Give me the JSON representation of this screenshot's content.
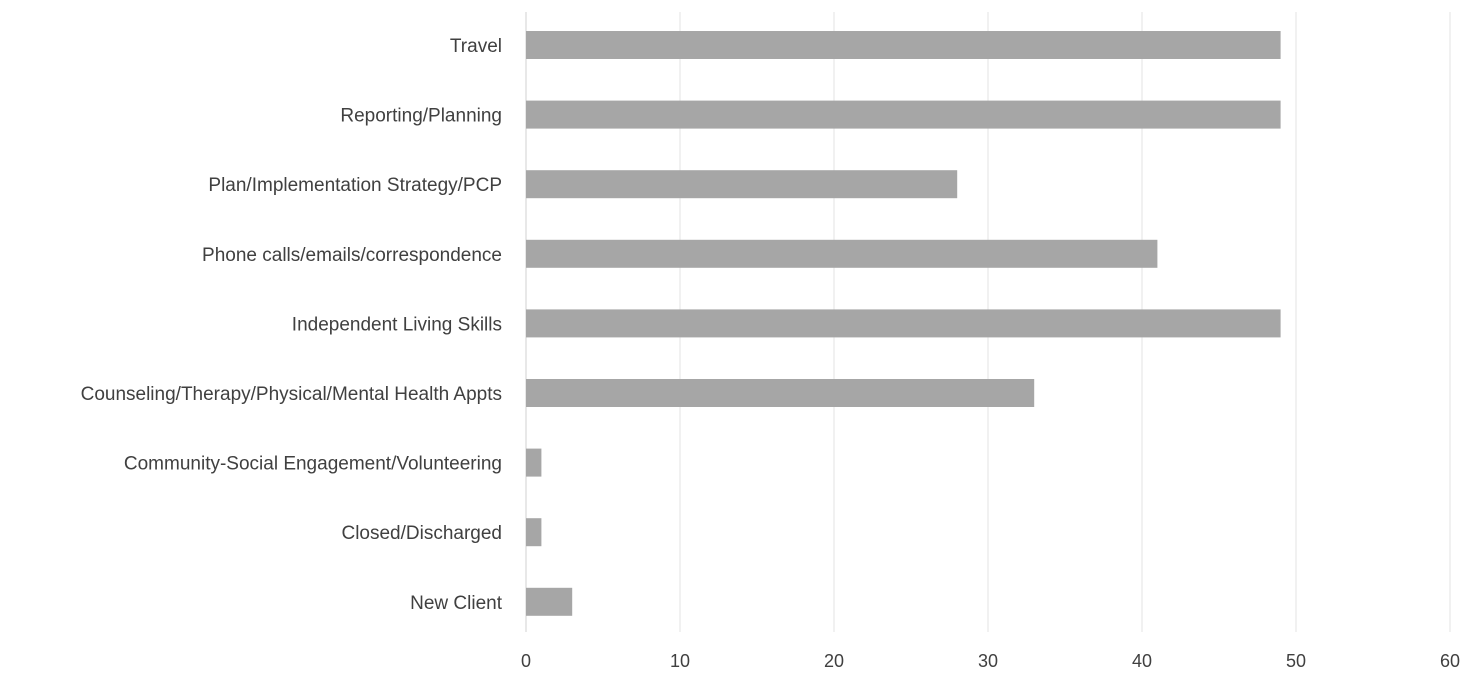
{
  "chart_data": {
    "type": "bar",
    "orientation": "horizontal",
    "title": "",
    "xlabel": "",
    "ylabel": "",
    "categories": [
      "Travel",
      "Reporting/Planning",
      "Plan/Implementation Strategy/PCP",
      "Phone calls/emails/correspondence",
      "Independent Living Skills",
      "Counseling/Therapy/Physical/Mental Health Appts",
      "Community-Social Engagement/Volunteering",
      "Closed/Discharged",
      "New Client"
    ],
    "values": [
      49,
      49,
      28,
      41,
      49,
      33,
      1,
      1,
      3
    ],
    "xlim": [
      0,
      60
    ],
    "xticks": [
      0,
      10,
      20,
      30,
      40,
      50,
      60
    ],
    "grid": "vertical",
    "legend": "none",
    "bar_color": "#a6a6a6"
  }
}
